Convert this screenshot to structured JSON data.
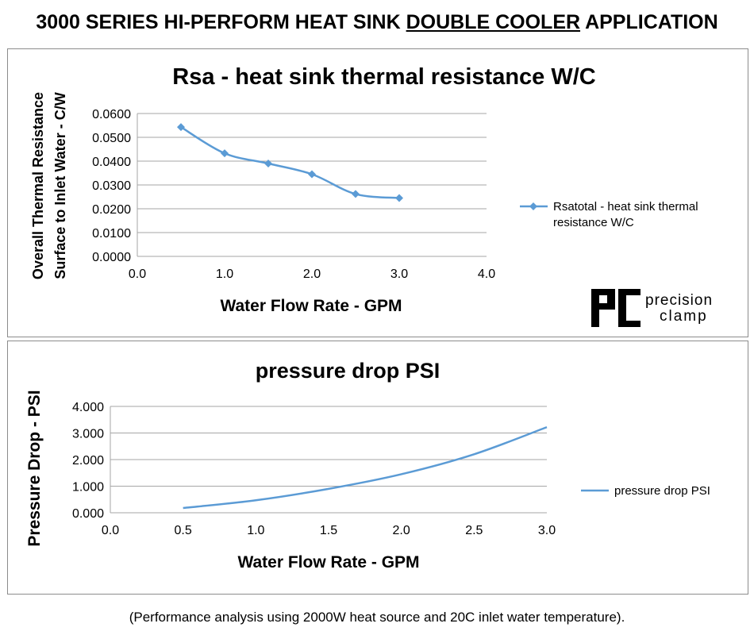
{
  "title": {
    "prefix": "3000 SERIES HI-PERFORM HEAT SINK ",
    "underlined": "DOUBLE COOLER",
    "suffix": " APPLICATION"
  },
  "footer": "(Performance analysis using 2000W heat source and 20C inlet water temperature).",
  "logo": {
    "text_line1": "precision",
    "text_line2": "clamp"
  },
  "chart_data": [
    {
      "type": "line",
      "title": "Rsa - heat sink thermal resistance  W/C",
      "xlabel": "Water Flow Rate - GPM",
      "ylabel": [
        "Overall Thermal Resistance",
        "Surface to Inlet Water - C/W"
      ],
      "xlim": [
        0,
        4
      ],
      "ylim": [
        0,
        0.06
      ],
      "xticks": [
        "0.0",
        "1.0",
        "2.0",
        "3.0",
        "4.0"
      ],
      "yticks": [
        "0.0000",
        "0.0100",
        "0.0200",
        "0.0300",
        "0.0400",
        "0.0500",
        "0.0600"
      ],
      "grid": true,
      "legend": "right",
      "marker": "diamond",
      "color": "#5b9bd5",
      "series": [
        {
          "name": "Rsatotal - heat sink thermal resistance  W/C",
          "x": [
            0.5,
            1.0,
            1.5,
            2.0,
            2.5,
            3.0
          ],
          "y": [
            0.0543,
            0.0433,
            0.039,
            0.0345,
            0.0262,
            0.0245
          ]
        }
      ]
    },
    {
      "type": "line",
      "title": "pressure drop  PSI",
      "xlabel": "Water Flow Rate - GPM",
      "ylabel": [
        "Pressure Drop - PSI"
      ],
      "xlim": [
        0,
        3
      ],
      "ylim": [
        0,
        4
      ],
      "xticks": [
        "0.0",
        "0.5",
        "1.0",
        "1.5",
        "2.0",
        "2.5",
        "3.0"
      ],
      "yticks": [
        "0.000",
        "1.000",
        "2.000",
        "3.000",
        "4.000"
      ],
      "grid": true,
      "legend": "right",
      "marker": "none",
      "color": "#5b9bd5",
      "series": [
        {
          "name": "pressure drop  PSI",
          "x": [
            0.5,
            1.0,
            1.5,
            2.0,
            2.5,
            3.0
          ],
          "y": [
            0.18,
            0.47,
            0.9,
            1.45,
            2.2,
            3.22
          ]
        }
      ]
    }
  ]
}
